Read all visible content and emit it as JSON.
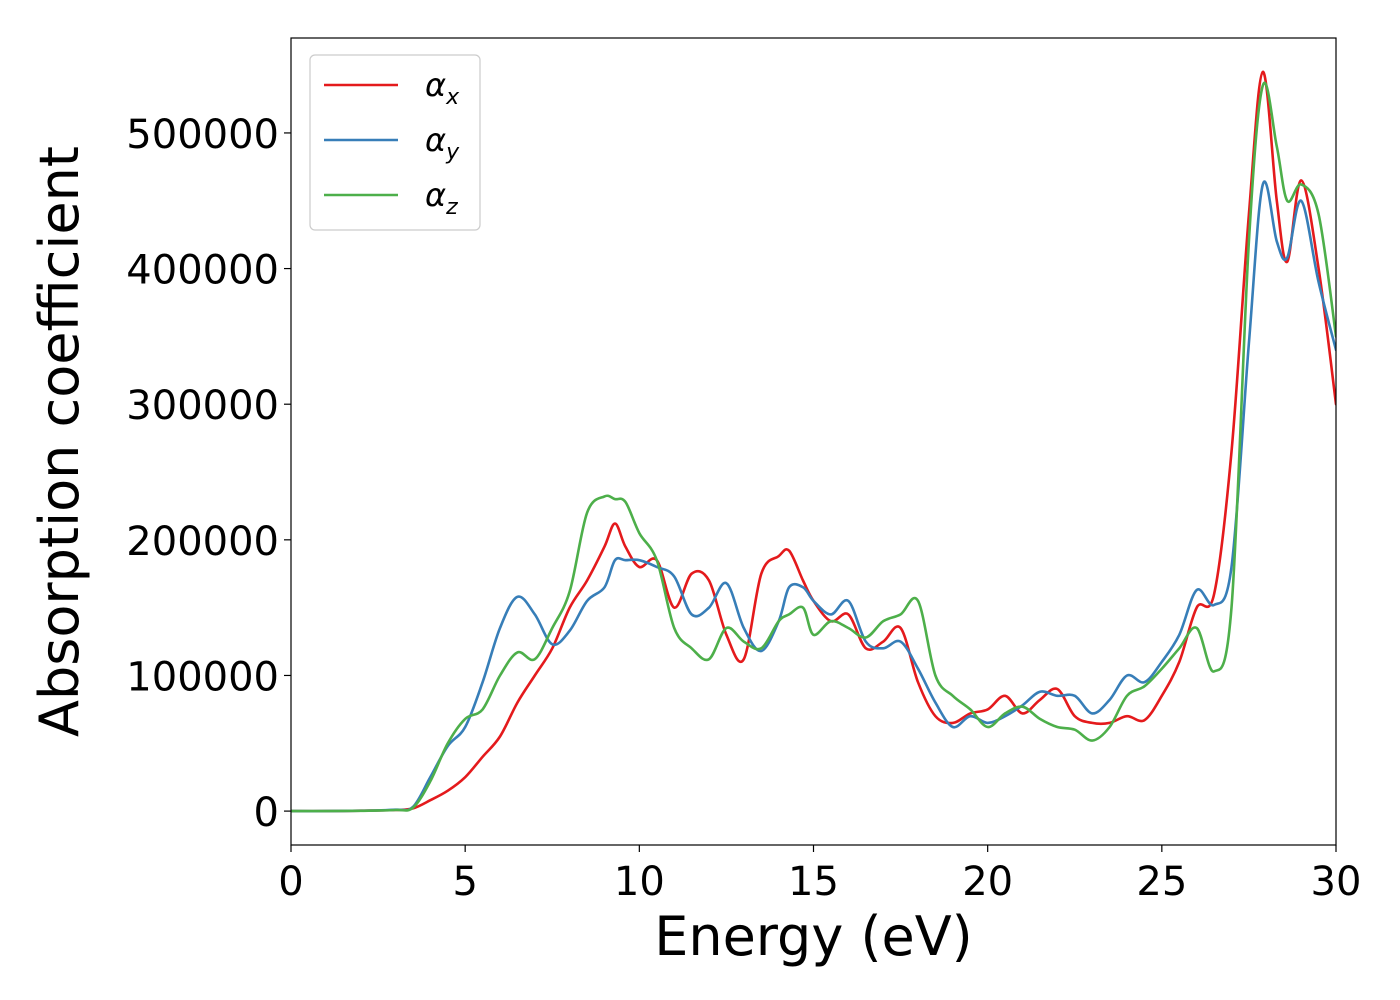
{
  "chart_data": {
    "type": "line",
    "xlabel": "Energy (eV)",
    "ylabel": "Absorption coefficient",
    "xlim": [
      0,
      30
    ],
    "ylim": [
      -25000,
      570000
    ],
    "xticks": [
      0,
      5,
      10,
      15,
      20,
      25,
      30
    ],
    "yticks": [
      0,
      100000,
      200000,
      300000,
      400000,
      500000
    ],
    "grid": false,
    "legend_position": "upper-left",
    "series": [
      {
        "name": "αx",
        "symbol": "α",
        "subscript": "x",
        "color": "#e41a1c",
        "x": [
          0,
          1,
          2,
          3,
          3.5,
          4,
          4.5,
          5,
          5.5,
          6,
          6.5,
          7,
          7.5,
          8,
          8.5,
          9,
          9.3,
          9.6,
          10,
          10.5,
          11,
          11.5,
          12,
          12.5,
          13,
          13.5,
          14,
          14.3,
          14.7,
          15,
          15.5,
          16,
          16.5,
          17,
          17.5,
          18,
          18.5,
          19,
          19.5,
          20,
          20.5,
          21,
          21.5,
          22,
          22.5,
          23,
          23.5,
          24,
          24.5,
          25,
          25.5,
          26,
          26.5,
          27,
          27.5,
          27.9,
          28.3,
          28.6,
          29,
          29.5,
          30
        ],
        "y": [
          0,
          0,
          300,
          800,
          2000,
          8000,
          15000,
          25000,
          40000,
          55000,
          80000,
          100000,
          120000,
          150000,
          170000,
          195000,
          212000,
          195000,
          180000,
          185000,
          150000,
          175000,
          170000,
          130000,
          112000,
          175000,
          188000,
          192000,
          170000,
          155000,
          140000,
          145000,
          120000,
          125000,
          135000,
          95000,
          70000,
          65000,
          72000,
          75000,
          85000,
          72000,
          82000,
          90000,
          70000,
          65000,
          65000,
          70000,
          67000,
          85000,
          110000,
          150000,
          160000,
          265000,
          440000,
          545000,
          450000,
          405000,
          465000,
          400000,
          300000
        ]
      },
      {
        "name": "αy",
        "symbol": "α",
        "subscript": "y",
        "color": "#377eb8",
        "x": [
          0,
          1,
          2,
          3,
          3.5,
          4,
          4.5,
          5,
          5.5,
          6,
          6.5,
          7,
          7.5,
          8,
          8.5,
          9,
          9.3,
          9.6,
          10,
          10.5,
          11,
          11.5,
          12,
          12.5,
          13,
          13.5,
          14,
          14.3,
          14.7,
          15,
          15.5,
          16,
          16.5,
          17,
          17.5,
          18,
          18.5,
          19,
          19.5,
          20,
          20.5,
          21,
          21.5,
          22,
          22.5,
          23,
          23.5,
          24,
          24.5,
          25,
          25.5,
          26,
          26.5,
          27,
          27.5,
          27.9,
          28.3,
          28.6,
          29,
          29.5,
          30
        ],
        "y": [
          0,
          0,
          300,
          1000,
          3000,
          25000,
          48000,
          62000,
          95000,
          135000,
          158000,
          145000,
          123000,
          133000,
          155000,
          165000,
          185000,
          185000,
          185000,
          180000,
          173000,
          145000,
          150000,
          168000,
          135000,
          118000,
          140000,
          165000,
          165000,
          155000,
          145000,
          155000,
          125000,
          120000,
          125000,
          105000,
          80000,
          62000,
          70000,
          65000,
          70000,
          78000,
          88000,
          85000,
          85000,
          72000,
          82000,
          100000,
          95000,
          110000,
          130000,
          163000,
          152000,
          180000,
          345000,
          462000,
          420000,
          408000,
          450000,
          390000,
          340000
        ]
      },
      {
        "name": "αz",
        "symbol": "α",
        "subscript": "z",
        "color": "#4daf4a",
        "x": [
          0,
          1,
          2,
          3,
          3.5,
          4,
          4.5,
          5,
          5.5,
          6,
          6.5,
          7,
          7.5,
          8,
          8.5,
          9,
          9.3,
          9.6,
          10,
          10.5,
          11,
          11.5,
          12,
          12.5,
          13,
          13.5,
          14,
          14.3,
          14.7,
          15,
          15.5,
          16,
          16.5,
          17,
          17.5,
          18,
          18.5,
          19,
          19.5,
          20,
          20.5,
          21,
          21.5,
          22,
          22.5,
          23,
          23.5,
          24,
          24.5,
          25,
          25.5,
          26,
          26.5,
          27,
          27.5,
          27.9,
          28.3,
          28.6,
          29,
          29.5,
          30
        ],
        "y": [
          0,
          0,
          200,
          800,
          2500,
          22000,
          50000,
          68000,
          75000,
          100000,
          117000,
          112000,
          135000,
          162000,
          220000,
          232000,
          230000,
          228000,
          205000,
          185000,
          135000,
          120000,
          112000,
          135000,
          125000,
          120000,
          140000,
          145000,
          150000,
          130000,
          140000,
          135000,
          128000,
          140000,
          145000,
          155000,
          100000,
          85000,
          75000,
          62000,
          72000,
          77000,
          68000,
          62000,
          60000,
          52000,
          62000,
          85000,
          92000,
          105000,
          120000,
          135000,
          103000,
          150000,
          420000,
          535000,
          490000,
          450000,
          462000,
          440000,
          350000
        ]
      }
    ]
  }
}
